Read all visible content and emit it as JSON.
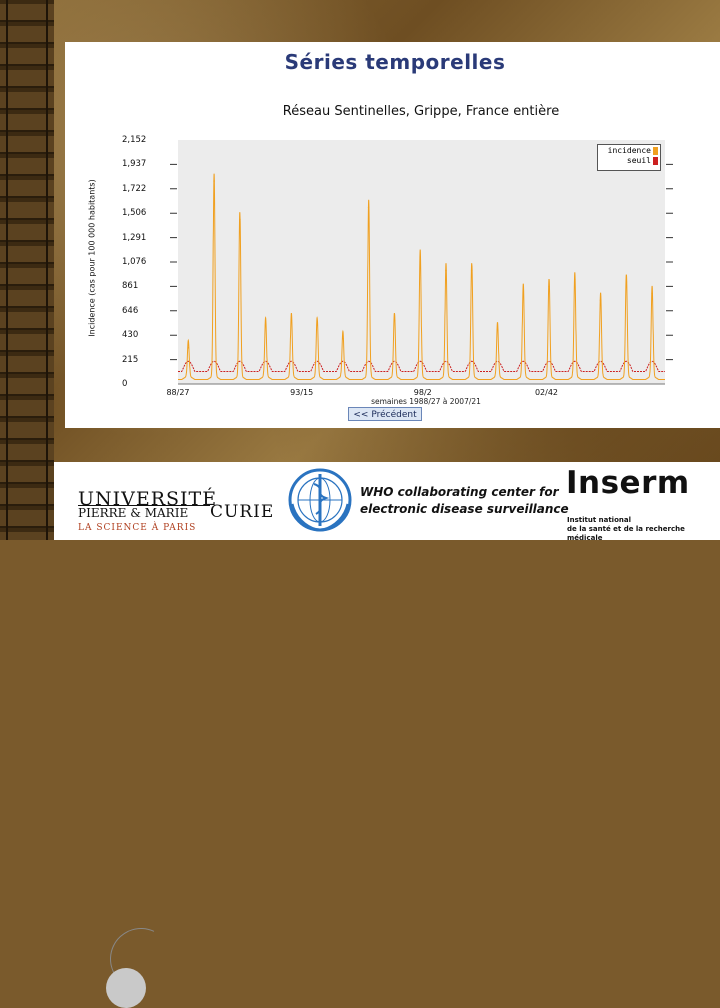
{
  "slide": {
    "heading": "Séries temporelles",
    "previous_button": "<< Précédent",
    "x_caption": "semaines 1988/27 à 2007/21"
  },
  "colors": {
    "incidence": "#f0a020",
    "seuil": "#cc2020",
    "plot_bg": "#ececec",
    "heading": "#2a3a78"
  },
  "chart_data": {
    "type": "line",
    "title": "Réseau Sentinelles, Grippe, France entière",
    "ylabel": "Incidence (cas pour 100 000 habitants)",
    "ylim": [
      0,
      2152
    ],
    "yticks": [
      "2,152",
      "1,937",
      "1,722",
      "1,506",
      "1,291",
      "1,076",
      "861",
      "646",
      "430",
      "215",
      "0"
    ],
    "ytick_values": [
      2152,
      1937,
      1722,
      1506,
      1291,
      1076,
      861,
      646,
      430,
      215,
      0
    ],
    "xticks": [
      "88/27",
      "93/15",
      "98/2",
      "02/42"
    ],
    "xtick_years": [
      1988.5,
      1993.3,
      1998.0,
      2002.8
    ],
    "xlim": [
      1988.5,
      2007.4
    ],
    "legend": [
      "incidence",
      "seuil"
    ],
    "legend_position": "top-right",
    "series": [
      {
        "name": "incidence",
        "peaks": [
          {
            "year": 1988.9,
            "value": 320
          },
          {
            "year": 1989.9,
            "value": 1790
          },
          {
            "year": 1990.9,
            "value": 1450
          },
          {
            "year": 1991.9,
            "value": 520
          },
          {
            "year": 1992.9,
            "value": 560
          },
          {
            "year": 1993.9,
            "value": 520
          },
          {
            "year": 1994.9,
            "value": 400
          },
          {
            "year": 1995.9,
            "value": 1560
          },
          {
            "year": 1996.9,
            "value": 560
          },
          {
            "year": 1997.9,
            "value": 1120
          },
          {
            "year": 1998.9,
            "value": 1000
          },
          {
            "year": 1999.9,
            "value": 1000
          },
          {
            "year": 2000.9,
            "value": 480
          },
          {
            "year": 2001.9,
            "value": 820
          },
          {
            "year": 2002.9,
            "value": 860
          },
          {
            "year": 2003.9,
            "value": 920
          },
          {
            "year": 2004.9,
            "value": 740
          },
          {
            "year": 2005.9,
            "value": 900
          },
          {
            "year": 2006.9,
            "value": 800
          }
        ]
      },
      {
        "name": "seuil",
        "base": 110,
        "amplitude": 90
      }
    ]
  }
}
